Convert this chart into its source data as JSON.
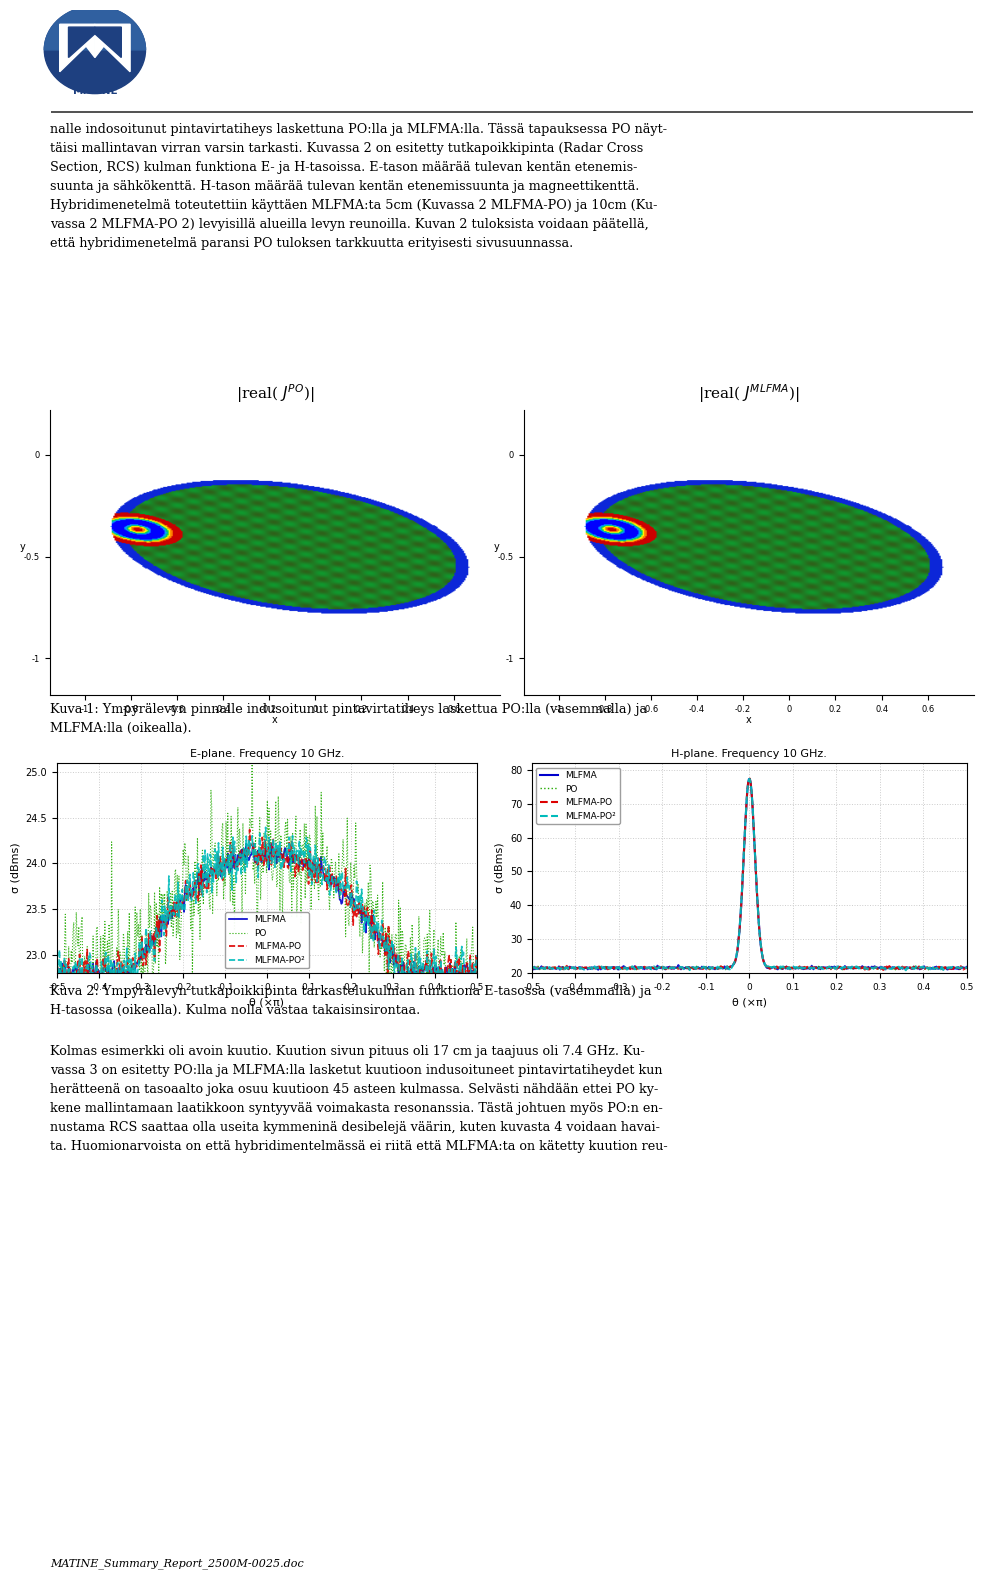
{
  "page_bg": "#ffffff",
  "footer_text": "MATINE_Summary_Report_2500M-0025.doc",
  "body_text_blocks": [
    "nalle indosoitunut pintavirtatiheys laskettuna PO:lla ja MLFMA:lla. Tässä tapauksessa PO näyt-\ntäisi mallintavan virran varsin tarkasti. Kuvassa 2 on esitetty tutkapoikkipinta (Radar Cross\nSection, RCS) kulman funktiona E- ja H-tasoissa. E-tason määrää tulevan kentän etenemis-\nsuunta ja sähkökenttä. H-tason määrää tulevan kentän etenemissuunta ja magneettikenttä.\nHybridimenetelmä toteutettiin käyttäen MLFMA:ta 5cm (Kuvassa 2 MLFMA-PO) ja 10cm (Ku-\nvassa 2 MLFMA-PO 2) levyisillä alueilla levyn reunoilla. Kuvan 2 tuloksista voidaan päätellä,\nettä hybridimenetelmä paransi PO tuloksen tarkkuutta erityisesti sivusuunnassa.",
    "Kuva 1: Ympyrälevyn pinnalle indusoitunut pintavirtatiheys laskettua PO:lla (vasemmalla) ja\nMLFMA:lla (oikealla).",
    "Kuva 2: Ympyrälevyn tutkapoikkipinta tarkastelukulman funktiona E-tasossa (vasemmalla) ja\nH-tasossa (oikealla). Kulma nolla vastaa takaisinsirontaa.",
    "Kolmas esimerkki oli avoin kuutio. Kuution sivun pituus oli 17 cm ja taajuus oli 7.4 GHz. Ku-\nvassa 3 on esitetty PO:lla ja MLFMA:lla lasketut kuutioon indusoituneet pintavirtatiheydet kun\nherätteenä on tasoaalto joka osuu kuutioon 45 asteen kulmassa. Selvästi nähdään ettei PO ky-\nkene mallintamaan laatikkoon syntyyvää voimakasta resonanssia. Tästä johtuen myös PO:n en-\nnustama RCS saattaa olla useita kymmeninä desibelejä väärin, kuten kuvasta 4 voidaan havai-\nta. Huomionarvoista on että hybridimentelmässä ei riitä että MLFMA:ta on kätetty kuution reu-"
  ],
  "eplane_title": "E-plane. Frequency 10 GHz.",
  "hplane_title": "H-plane. Frequency 10 GHz.",
  "eplane_xlim": [
    -0.5,
    0.5
  ],
  "eplane_ylim": [
    22.8,
    25.1
  ],
  "eplane_yticks": [
    23.0,
    23.5,
    24.0,
    24.5,
    25.0
  ],
  "hplane_xlim": [
    -0.5,
    0.5
  ],
  "hplane_ylim": [
    20,
    80
  ],
  "hplane_yticks": [
    20,
    30,
    40,
    50,
    60,
    70,
    80
  ],
  "xlabel": "θ (×π)",
  "ylabel": "σ (dBms)",
  "legend_labels": [
    "MLFMA",
    "PO",
    "MLFMA-PO",
    "MLFMA-PO²"
  ],
  "legend_colors": [
    "#0000cc",
    "#22aa00",
    "#dd0000",
    "#00bbbb"
  ],
  "surf_title_left": "|real( $J^{PO}$)|",
  "surf_title_right": "|real( $J^{MLFMA}$)|",
  "text_color": "#000000",
  "grid_color": "#cccccc",
  "logo_circle_color": "#1e4080",
  "logo_text": "MATINE"
}
